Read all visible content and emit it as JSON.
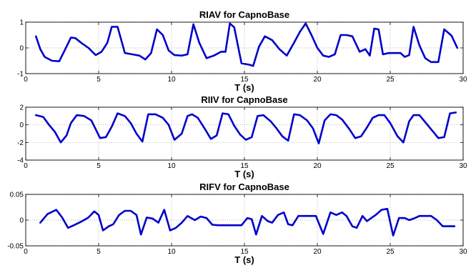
{
  "chart_data": [
    {
      "type": "line",
      "title": "RIAV for CapnoBase",
      "xlabel": "T (s)",
      "ylabel": "",
      "xlim": [
        0,
        30
      ],
      "ylim": [
        -1,
        1
      ],
      "xticks": [
        "0",
        "5",
        "10",
        "15",
        "20",
        "25",
        "30"
      ],
      "yticks": [
        "-1",
        "0",
        "1"
      ],
      "grid": true,
      "series": [
        {
          "color": "#0000cc",
          "x": [
            0.7,
            1.0,
            1.3,
            1.8,
            2.3,
            2.8,
            3.1,
            3.4,
            3.8,
            4.3,
            4.8,
            5.2,
            5.6,
            5.9,
            6.3,
            6.8,
            7.3,
            7.8,
            8.2,
            8.6,
            9.0,
            9.4,
            9.8,
            10.2,
            10.7,
            11.1,
            11.5,
            11.9,
            12.4,
            12.9,
            13.4,
            13.7,
            14.0,
            14.3,
            14.8,
            15.3,
            15.6,
            16.0,
            16.4,
            16.9,
            17.4,
            17.9,
            18.4,
            18.8,
            19.2,
            19.6,
            20.0,
            20.4,
            20.8,
            21.2,
            21.6,
            22.0,
            22.4,
            22.9,
            23.3,
            23.6,
            23.9,
            24.2,
            24.5,
            24.9,
            25.3,
            25.7,
            26.0,
            26.3,
            26.6,
            27.0,
            27.4,
            27.8,
            28.3,
            28.7,
            29.2,
            29.6
          ],
          "y": [
            0.45,
            -0.05,
            -0.35,
            -0.5,
            -0.52,
            0.05,
            0.4,
            0.38,
            0.2,
            0.0,
            -0.28,
            -0.15,
            0.2,
            0.82,
            0.82,
            -0.2,
            -0.25,
            -0.3,
            -0.45,
            -0.2,
            0.72,
            0.5,
            -0.1,
            -0.28,
            -0.3,
            -0.25,
            0.92,
            0.2,
            -0.4,
            -0.3,
            -0.15,
            -0.15,
            0.95,
            0.8,
            -0.6,
            -0.65,
            -0.7,
            0.05,
            0.45,
            0.3,
            -0.05,
            -0.3,
            0.2,
            0.62,
            0.95,
            0.5,
            0.0,
            -0.3,
            -0.35,
            -0.25,
            0.5,
            0.5,
            0.45,
            -0.15,
            -0.05,
            -0.3,
            0.75,
            0.72,
            -0.25,
            -0.2,
            -0.2,
            -0.2,
            -0.35,
            -0.28,
            0.82,
            0.1,
            -0.4,
            -0.55,
            -0.55,
            0.72,
            0.48,
            0.0
          ]
        }
      ]
    },
    {
      "type": "line",
      "title": "RIIV for CapnoBase",
      "xlabel": "T (s)",
      "ylabel": "",
      "xlim": [
        0,
        30
      ],
      "ylim": [
        -4,
        2
      ],
      "xticks": [
        "0",
        "5",
        "10",
        "15",
        "20",
        "25",
        "30"
      ],
      "yticks": [
        "-4",
        "-2",
        "0",
        "2"
      ],
      "grid": true,
      "series": [
        {
          "color": "#0000cc",
          "x": [
            0.7,
            1.2,
            1.6,
            2.0,
            2.4,
            2.8,
            3.1,
            3.5,
            4.0,
            4.5,
            4.8,
            5.1,
            5.5,
            5.9,
            6.3,
            6.8,
            7.2,
            7.6,
            8.0,
            8.4,
            8.9,
            9.4,
            9.8,
            10.2,
            10.7,
            11.1,
            11.4,
            11.8,
            12.3,
            12.7,
            13.1,
            13.5,
            13.9,
            14.3,
            14.7,
            15.1,
            15.5,
            15.9,
            16.3,
            16.8,
            17.2,
            17.6,
            18.0,
            18.4,
            18.8,
            19.3,
            19.7,
            20.1,
            20.5,
            20.9,
            21.3,
            21.7,
            22.2,
            22.6,
            23.0,
            23.4,
            23.8,
            24.2,
            24.6,
            25.0,
            25.5,
            25.9,
            26.3,
            26.6,
            27.0,
            27.4,
            27.9,
            28.3,
            28.7,
            29.1,
            29.5
          ],
          "y": [
            1.1,
            0.9,
            0.0,
            -0.8,
            -2.0,
            -1.2,
            0.2,
            1.1,
            1.0,
            0.5,
            -0.5,
            -1.5,
            -1.4,
            -0.2,
            1.3,
            1.0,
            0.2,
            -1.0,
            -1.9,
            1.2,
            1.2,
            0.8,
            0.0,
            -1.7,
            -1.0,
            1.0,
            1.2,
            0.8,
            -0.5,
            -1.6,
            -1.2,
            1.3,
            1.2,
            -0.1,
            -1.1,
            -1.7,
            -1.4,
            1.0,
            1.1,
            0.4,
            -0.4,
            -1.3,
            -1.8,
            1.2,
            1.1,
            0.5,
            -0.4,
            -2.1,
            0.5,
            1.2,
            1.1,
            0.6,
            -0.5,
            -1.5,
            -1.3,
            -0.3,
            0.8,
            1.1,
            1.1,
            0.2,
            -1.3,
            -2.0,
            0.4,
            1.1,
            1.1,
            0.3,
            -0.7,
            -1.5,
            -1.4,
            1.3,
            1.4
          ]
        }
      ]
    },
    {
      "type": "line",
      "title": "RIFV for CapnoBase",
      "xlabel": "T (s)",
      "ylabel": "",
      "xlim": [
        0,
        30
      ],
      "ylim": [
        -0.05,
        0.05
      ],
      "xticks": [
        "0",
        "5",
        "10",
        "15",
        "20",
        "25",
        "30"
      ],
      "yticks": [
        "-0.05",
        "0",
        "0.05"
      ],
      "grid": true,
      "series": [
        {
          "color": "#0000cc",
          "x": [
            1.0,
            1.5,
            2.1,
            2.5,
            2.9,
            3.3,
            3.8,
            4.3,
            4.7,
            5.0,
            5.3,
            5.7,
            6.0,
            6.4,
            6.8,
            7.2,
            7.6,
            7.9,
            8.3,
            8.7,
            9.1,
            9.5,
            9.9,
            10.3,
            10.7,
            11.1,
            11.6,
            12.0,
            12.4,
            12.8,
            13.2,
            13.6,
            14.2,
            14.8,
            15.2,
            15.5,
            15.8,
            16.2,
            16.6,
            16.9,
            17.3,
            17.7,
            18.0,
            18.3,
            18.7,
            19.1,
            19.5,
            19.9,
            20.4,
            20.9,
            21.3,
            21.7,
            22.0,
            22.4,
            22.7,
            23.1,
            23.4,
            23.7,
            24.0,
            24.4,
            24.8,
            25.2,
            25.6,
            26.0,
            26.3,
            26.7,
            27.0,
            27.4,
            27.8,
            28.2,
            28.6,
            29.0,
            29.4
          ],
          "y": [
            -0.005,
            0.012,
            0.02,
            0.005,
            -0.015,
            -0.01,
            -0.003,
            0.005,
            0.017,
            0.01,
            -0.02,
            -0.012,
            -0.008,
            0.01,
            0.018,
            0.018,
            0.01,
            -0.028,
            0.005,
            0.003,
            -0.005,
            0.02,
            -0.02,
            -0.015,
            -0.005,
            0.008,
            0.0,
            0.007,
            0.004,
            -0.009,
            -0.01,
            -0.01,
            -0.01,
            -0.01,
            0.004,
            0.002,
            -0.028,
            0.008,
            -0.002,
            -0.005,
            0.01,
            0.015,
            -0.008,
            -0.01,
            0.008,
            0.008,
            0.008,
            0.008,
            -0.027,
            0.015,
            0.01,
            0.015,
            0.008,
            -0.012,
            -0.015,
            0.008,
            -0.002,
            0.004,
            0.01,
            0.02,
            0.022,
            -0.03,
            0.004,
            0.004,
            0.0,
            0.004,
            0.008,
            0.008,
            0.008,
            0.0,
            -0.012,
            -0.012,
            -0.012
          ]
        }
      ]
    }
  ]
}
